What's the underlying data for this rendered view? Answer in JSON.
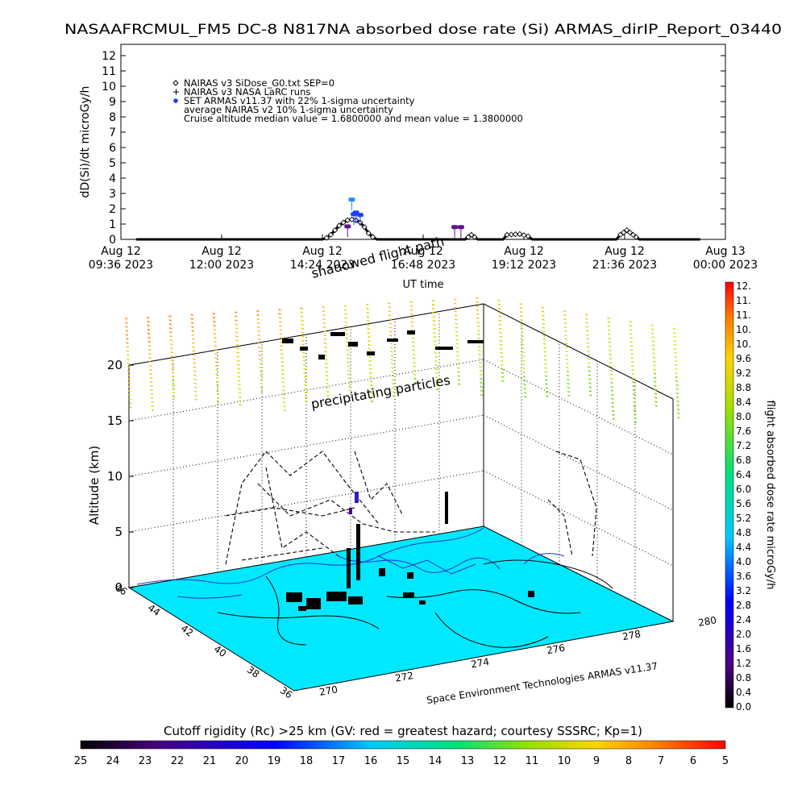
{
  "title": "NASAAFRCMUL_FM5 DC-8   N817NA absorbed dose rate (Si) ARMAS_dirIP_Report_03440",
  "chart_data": [
    {
      "type": "line",
      "ylabel": "dD(Si)/dt microGy/h",
      "xlabel": "UT time",
      "ylim": [
        0,
        12
      ],
      "yticks": [
        "0",
        "1",
        "2",
        "3",
        "4",
        "5",
        "6",
        "7",
        "8",
        "9",
        "10",
        "11",
        "12"
      ],
      "xticks": [
        {
          "line1": "Aug 12",
          "line2": "09:36 2023"
        },
        {
          "line1": "Aug 12",
          "line2": "12:00 2023"
        },
        {
          "line1": "Aug 12",
          "line2": "14:24 2023"
        },
        {
          "line1": "Aug 12",
          "line2": "16:48 2023"
        },
        {
          "line1": "Aug 12",
          "line2": "19:12 2023"
        },
        {
          "line1": "Aug 12",
          "line2": "21:36 2023"
        },
        {
          "line1": "Aug 13",
          "line2": "00:00 2023"
        }
      ],
      "legend": [
        {
          "symbol": "diamond",
          "text": "NAIRAS v3 SiDose_G0.txt SEP=0"
        },
        {
          "symbol": "plus",
          "text": "NAIRAS v3 NASA LaRC runs"
        },
        {
          "symbol": "dot",
          "text": "SET ARMAS v11.37 with 22% 1-sigma uncertainty"
        },
        {
          "symbol": "none",
          "text": "average NAIRAS v2 10% 1-sigma uncertainty"
        },
        {
          "symbol": "none",
          "text": "Cruise altitude median value = 1.6800000 and mean value = 1.3800000"
        }
      ],
      "series": [
        {
          "name": "NAIRAS v3 SiDose_G0.txt SEP=0",
          "points": [
            [
              9.96,
              0
            ],
            [
              14.4,
              0
            ],
            [
              14.5,
              0.1
            ],
            [
              14.6,
              0.3
            ],
            [
              14.7,
              0.6
            ],
            [
              14.8,
              0.9
            ],
            [
              14.9,
              1.1
            ],
            [
              15.0,
              1.25
            ],
            [
              15.1,
              1.3
            ],
            [
              15.2,
              1.25
            ],
            [
              15.3,
              1.1
            ],
            [
              15.4,
              0.8
            ],
            [
              15.5,
              0.4
            ],
            [
              15.6,
              0.15
            ],
            [
              15.7,
              0
            ],
            [
              17.8,
              0
            ],
            [
              17.95,
              0.3
            ],
            [
              18.1,
              0
            ],
            [
              18.7,
              0
            ],
            [
              18.8,
              0.3
            ],
            [
              19.1,
              0.35
            ],
            [
              19.3,
              0.2
            ],
            [
              19.4,
              0
            ],
            [
              21.4,
              0
            ],
            [
              21.5,
              0.3
            ],
            [
              21.65,
              0.6
            ],
            [
              21.8,
              0.3
            ],
            [
              21.95,
              0
            ],
            [
              23.4,
              0
            ]
          ]
        }
      ],
      "armas_measurements": [
        {
          "x": 15.1,
          "y": 2.6,
          "color": "#1e90ff"
        },
        {
          "x": 15.2,
          "y": 1.75,
          "color": "#1e3cff"
        },
        {
          "x": 15.15,
          "y": 1.65,
          "color": "#1e3cff"
        },
        {
          "x": 15.3,
          "y": 1.6,
          "color": "#1e3cff"
        },
        {
          "x": 15.0,
          "y": 0.85,
          "color": "#5a1496"
        },
        {
          "x": 17.55,
          "y": 0.8,
          "color": "#5a1496"
        },
        {
          "x": 17.7,
          "y": 0.8,
          "color": "#5a1496"
        }
      ]
    },
    {
      "type": "scatter",
      "ylabel": "Altitude (km)",
      "zticks": [
        "0",
        "5",
        "10",
        "15",
        "20"
      ],
      "lat_ticks": [
        "46",
        "44",
        "42",
        "40",
        "38",
        "36"
      ],
      "lon_ticks": [
        "270",
        "272",
        "274",
        "276",
        "278",
        "280"
      ],
      "annotations": [
        "shadowed flight path",
        "precipitating particles"
      ],
      "credit": "Space Environment Technologies ARMAS v11.37"
    }
  ],
  "colorbar_right": {
    "label": "flight absorbed dose rate microGy/h",
    "ticks": [
      "12.",
      "11.",
      "11.",
      "10.",
      "10.",
      "9.6",
      "9.2",
      "8.8",
      "8.4",
      "8.0",
      "7.6",
      "7.2",
      "6.8",
      "6.4",
      "6.0",
      "5.6",
      "5.2",
      "4.8",
      "4.4",
      "4.0",
      "3.6",
      "3.2",
      "2.8",
      "2.4",
      "2.0",
      "1.6",
      "1.2",
      "0.8",
      "0.4",
      "0.0"
    ]
  },
  "colorbar_bottom": {
    "label": "Cutoff rigidity (Rc) >25 km (GV: red = greatest hazard; courtesy SSSRC; Kp=1)",
    "ticks": [
      "25",
      "24",
      "23",
      "22",
      "21",
      "20",
      "19",
      "18",
      "17",
      "16",
      "15",
      "14",
      "13",
      "12",
      "11",
      "10",
      "9",
      "8",
      "7",
      "6",
      "5"
    ]
  },
  "colors": {
    "floor": "#00e8ff",
    "coastline": "#2030d0",
    "high_dose": "#ff0000",
    "low_dose": "#000000"
  }
}
